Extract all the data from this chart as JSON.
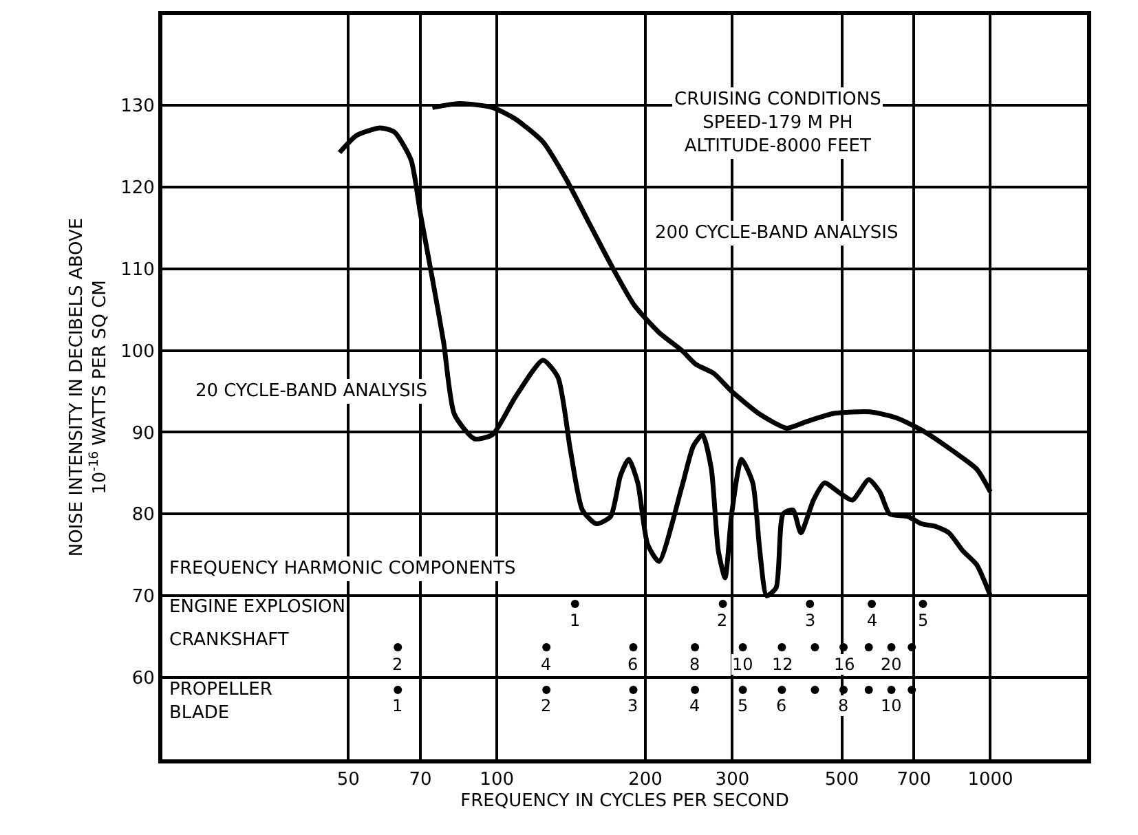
{
  "chart_data": {
    "type": "line",
    "xlabel": "FREQUENCY IN CYCLES PER SECOND",
    "ylabel": "NOISE INTENSITY IN DECIBELS ABOVE\n10$^{-16}$ WATTS PER SQ CM",
    "log": "x",
    "grid": true,
    "legend": false,
    "xlim": [
      21,
      1570
    ],
    "xticks": [
      50,
      70,
      100,
      200,
      300,
      500,
      700,
      1000
    ],
    "ylim": [
      50,
      141
    ],
    "yticks": [
      60,
      70,
      80,
      90,
      100,
      110,
      120,
      130
    ],
    "annotations": [
      "CRUISING CONDITIONS\nSPEED-179 M PH\nALTITUDE-8000 FEET",
      "FREQUENCY HARMONIC COMPONENTS",
      "ENGINE EXPLOSION",
      "CRANKSHAFT",
      "PROPELLER\nBLADE",
      {
        "text": "1",
        "x": 144,
        "y": 69
      },
      {
        "text": "2",
        "x": 287,
        "y": 69
      },
      {
        "text": "3",
        "x": 431,
        "y": 69
      },
      {
        "text": "4",
        "x": 575,
        "y": 69
      },
      {
        "text": "5",
        "x": 730,
        "y": 69
      },
      {
        "text": "2",
        "x": 63,
        "y": 63.7
      },
      {
        "text": "4",
        "x": 126,
        "y": 63.7
      },
      {
        "text": "6",
        "x": 189,
        "y": 63.7
      },
      {
        "text": "8",
        "x": 252,
        "y": 63.7
      },
      {
        "text": "10",
        "x": 315,
        "y": 63.7
      },
      {
        "text": "12",
        "x": 378,
        "y": 63.7
      },
      {
        "text": "16",
        "x": 504,
        "y": 63.7
      },
      {
        "text": "20",
        "x": 630,
        "y": 63.7
      },
      {
        "text": "1",
        "x": 63,
        "y": 58.5
      },
      {
        "text": "2",
        "x": 126,
        "y": 58.5
      },
      {
        "text": "3",
        "x": 189,
        "y": 58.5
      },
      {
        "text": "4",
        "x": 252,
        "y": 58.5
      },
      {
        "text": "5",
        "x": 315,
        "y": 58.5
      },
      {
        "text": "6",
        "x": 378,
        "y": 58.5
      },
      {
        "text": "8",
        "x": 504,
        "y": 58.5
      },
      {
        "text": "10",
        "x": 630,
        "y": 58.5
      }
    ],
    "series": [
      {
        "name": "200 CYCLE-BAND ANALYSIS",
        "color": "#000000",
        "marker": "none",
        "x": [
          74,
          84,
          98,
          109,
          124,
          138,
          154,
          172,
          190,
          213,
          237,
          253,
          275,
          299,
          341,
          387,
          424,
          482,
          570,
          649,
          738,
          840,
          938,
          1000
        ],
        "values": [
          129.7,
          130.2,
          129.7,
          128.3,
          125.5,
          121,
          115.5,
          110,
          105.5,
          102.2,
          100,
          98.3,
          97.2,
          95,
          92.2,
          90.5,
          91.3,
          92.3,
          92.5,
          91.7,
          90,
          87.7,
          85.5,
          82.7
        ]
      },
      {
        "name": "20 CYCLE-BAND ANALYSIS",
        "color": "#000000",
        "marker": "none",
        "x": [
          48,
          52,
          58,
          62,
          67,
          70,
          74,
          78,
          82,
          90,
          98,
          109,
          124,
          133,
          141,
          149,
          159,
          170,
          178,
          185,
          193,
          202,
          213,
          237,
          250,
          261,
          272,
          281,
          290,
          299,
          313,
          330,
          341,
          352,
          368,
          380,
          398,
          413,
          438,
          461,
          492,
          525,
          567,
          597,
          625,
          680,
          725,
          773,
          824,
          879,
          938,
          1000
        ],
        "values": [
          124.2,
          126.3,
          127.2,
          126.7,
          123.3,
          116.7,
          108.8,
          101,
          92.2,
          89.2,
          89.7,
          94.3,
          98.8,
          96.7,
          87.7,
          80.5,
          78.8,
          79.7,
          84.7,
          86.7,
          83.8,
          76.3,
          74.2,
          83.3,
          88.3,
          89.7,
          85.5,
          75.5,
          72.2,
          80,
          86.7,
          83.8,
          75.5,
          70,
          71,
          80,
          80.5,
          77.7,
          81.7,
          83.8,
          82.7,
          81.7,
          84.2,
          82.7,
          80,
          79.7,
          78.8,
          78.5,
          77.7,
          75.5,
          73.8,
          70
        ]
      },
      {
        "type": "scatter",
        "color": "#000000",
        "marker": "circle",
        "x": [
          144,
          287,
          431,
          575,
          730
        ],
        "values": [
          69,
          69,
          69,
          69,
          69
        ]
      },
      {
        "type": "scatter",
        "color": "#000000",
        "marker": "circle",
        "x": [
          63,
          126,
          189,
          252,
          315,
          378,
          441,
          504,
          567,
          630,
          693
        ],
        "values": [
          63.7,
          63.7,
          63.7,
          63.7,
          63.7,
          63.7,
          63.7,
          63.7,
          63.7,
          63.7,
          63.7
        ]
      },
      {
        "type": "scatter",
        "color": "#000000",
        "marker": "circle",
        "x": [
          63,
          126,
          189,
          252,
          315,
          378,
          441,
          504,
          567,
          630,
          693
        ],
        "values": [
          58.5,
          58.5,
          58.5,
          58.5,
          58.5,
          58.5,
          58.5,
          58.5,
          58.5,
          58.5,
          58.5
        ]
      }
    ]
  }
}
